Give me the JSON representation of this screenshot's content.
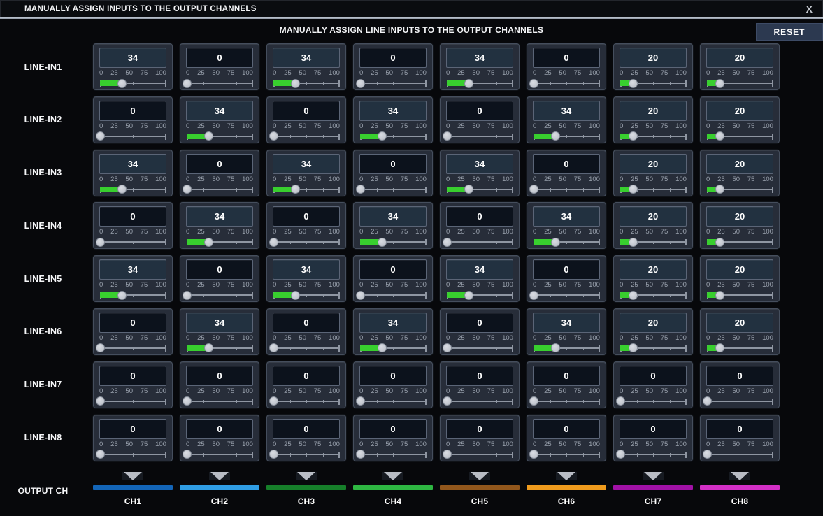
{
  "window": {
    "title": "MANUALLY ASSIGN INPUTS TO THE OUTPUT CHANNELS",
    "close_label": "X"
  },
  "header": {
    "title": "MANUALLY ASSIGN LINE INPUTS TO THE OUTPUT CHANNELS",
    "reset_label": "RESET"
  },
  "slider": {
    "min": 0,
    "max": 100,
    "tick_labels": [
      "0",
      "25",
      "50",
      "75",
      "100"
    ],
    "fill_color": "#38cf2e"
  },
  "inputs": [
    "LINE-IN1",
    "LINE-IN2",
    "LINE-IN3",
    "LINE-IN4",
    "LINE-IN5",
    "LINE-IN6",
    "LINE-IN7",
    "LINE-IN8"
  ],
  "channels": [
    {
      "label": "CH1",
      "color": "#1365b8"
    },
    {
      "label": "CH2",
      "color": "#2f9de4"
    },
    {
      "label": "CH3",
      "color": "#167f2a"
    },
    {
      "label": "CH4",
      "color": "#2eb742"
    },
    {
      "label": "CH5",
      "color": "#92571c"
    },
    {
      "label": "CH6",
      "color": "#ef9b1d"
    },
    {
      "label": "CH7",
      "color": "#a111a6"
    },
    {
      "label": "CH8",
      "color": "#d32fc6"
    }
  ],
  "output_row": {
    "label": "OUTPUT CH"
  },
  "matrix": [
    [
      34,
      0,
      34,
      0,
      34,
      0,
      20,
      20
    ],
    [
      0,
      34,
      0,
      34,
      0,
      34,
      20,
      20
    ],
    [
      34,
      0,
      34,
      0,
      34,
      0,
      20,
      20
    ],
    [
      0,
      34,
      0,
      34,
      0,
      34,
      20,
      20
    ],
    [
      34,
      0,
      34,
      0,
      34,
      0,
      20,
      20
    ],
    [
      0,
      34,
      0,
      34,
      0,
      34,
      20,
      20
    ],
    [
      0,
      0,
      0,
      0,
      0,
      0,
      0,
      0
    ],
    [
      0,
      0,
      0,
      0,
      0,
      0,
      0,
      0
    ]
  ]
}
